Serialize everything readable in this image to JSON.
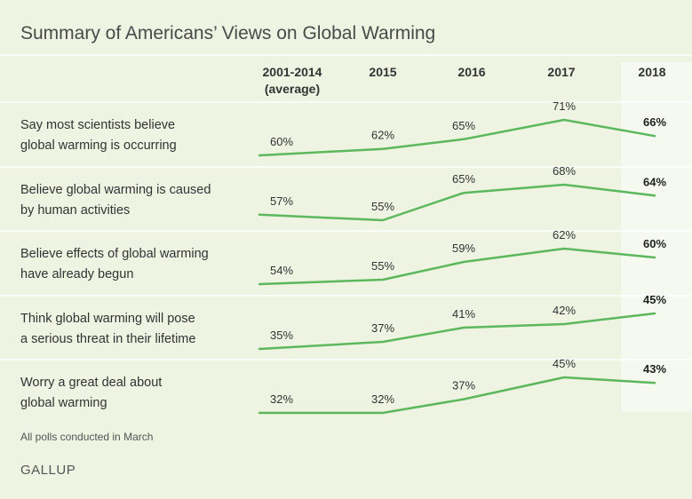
{
  "title": "Summary of Americans’ Views on Global Warming",
  "note": "All polls conducted in March",
  "brand": "GALLUP",
  "colors": {
    "background": "#eef3e2",
    "line": "#5cb85c",
    "highlight_column": "#f6f9ef",
    "divider": "#ffffff"
  },
  "columns": [
    {
      "label_line1": "2001-2014",
      "label_line2": "(average)"
    },
    {
      "label_line1": "2015",
      "label_line2": ""
    },
    {
      "label_line1": "2016",
      "label_line2": ""
    },
    {
      "label_line1": "2017",
      "label_line2": ""
    },
    {
      "label_line1": "2018",
      "label_line2": ""
    }
  ],
  "chart_data": {
    "type": "line",
    "categories": [
      "2001-2014 (average)",
      "2015",
      "2016",
      "2017",
      "2018"
    ],
    "highlighted_category": "2018",
    "series": [
      {
        "label_line1": "Say most scientists believe",
        "label_line2": "global warming is occurring",
        "values": [
          60,
          62,
          65,
          71,
          66
        ],
        "value_labels": [
          "60%",
          "62%",
          "65%",
          "71%",
          "66%"
        ]
      },
      {
        "label_line1": "Believe global warming is caused",
        "label_line2": "by human activities",
        "values": [
          57,
          55,
          65,
          68,
          64
        ],
        "value_labels": [
          "57%",
          "55%",
          "65%",
          "68%",
          "64%"
        ]
      },
      {
        "label_line1": "Believe effects of global warming",
        "label_line2": "have already begun",
        "values": [
          54,
          55,
          59,
          62,
          60
        ],
        "value_labels": [
          "54%",
          "55%",
          "59%",
          "62%",
          "60%"
        ]
      },
      {
        "label_line1": "Think global warming will pose",
        "label_line2": "a serious threat in their lifetime",
        "values": [
          35,
          37,
          41,
          42,
          45
        ],
        "value_labels": [
          "35%",
          "37%",
          "41%",
          "42%",
          "45%"
        ]
      },
      {
        "label_line1": "Worry a great deal about",
        "label_line2": "global warming",
        "values": [
          32,
          32,
          37,
          45,
          43
        ],
        "value_labels": [
          "32%",
          "32%",
          "37%",
          "45%",
          "43%"
        ]
      }
    ]
  }
}
